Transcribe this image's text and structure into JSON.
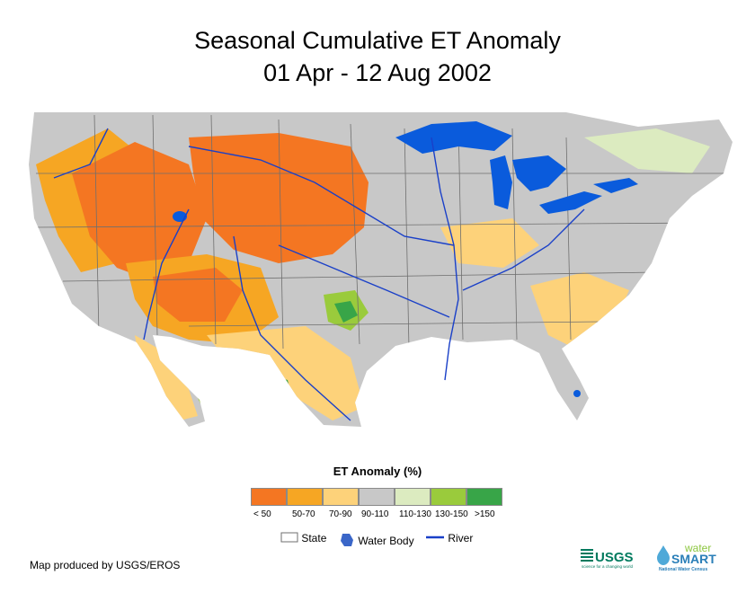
{
  "title": {
    "line1": "Seasonal Cumulative ET Anomaly",
    "line2": "01 Apr - 12 Aug 2002"
  },
  "legend": {
    "title": "ET Anomaly (%)",
    "classes": [
      {
        "label": "< 50",
        "color": "#f47622"
      },
      {
        "label": "50-70",
        "color": "#f6a623"
      },
      {
        "label": "70-90",
        "color": "#fdd27a"
      },
      {
        "label": "90-110",
        "color": "#c8c8c8"
      },
      {
        "label": "110-130",
        "color": "#dcebc0"
      },
      {
        "label": "130-150",
        "color": "#9acb3c"
      },
      {
        "label": ">150",
        "color": "#38a548"
      }
    ],
    "symbols": {
      "state": "State",
      "water_body": "Water Body",
      "river": "River"
    }
  },
  "map_colors": {
    "land": "#c8c8c8",
    "water": "#0a5bdc",
    "river": "#1a40c8",
    "state_line": "#6f6f6f"
  },
  "credit": "Map produced by USGS/EROS",
  "logos": {
    "usgs": "USGS",
    "usgs_tagline": "science for a changing world",
    "watersmart_top": "water",
    "watersmart_main": "SMART",
    "watersmart_sub": "National Water Census"
  }
}
